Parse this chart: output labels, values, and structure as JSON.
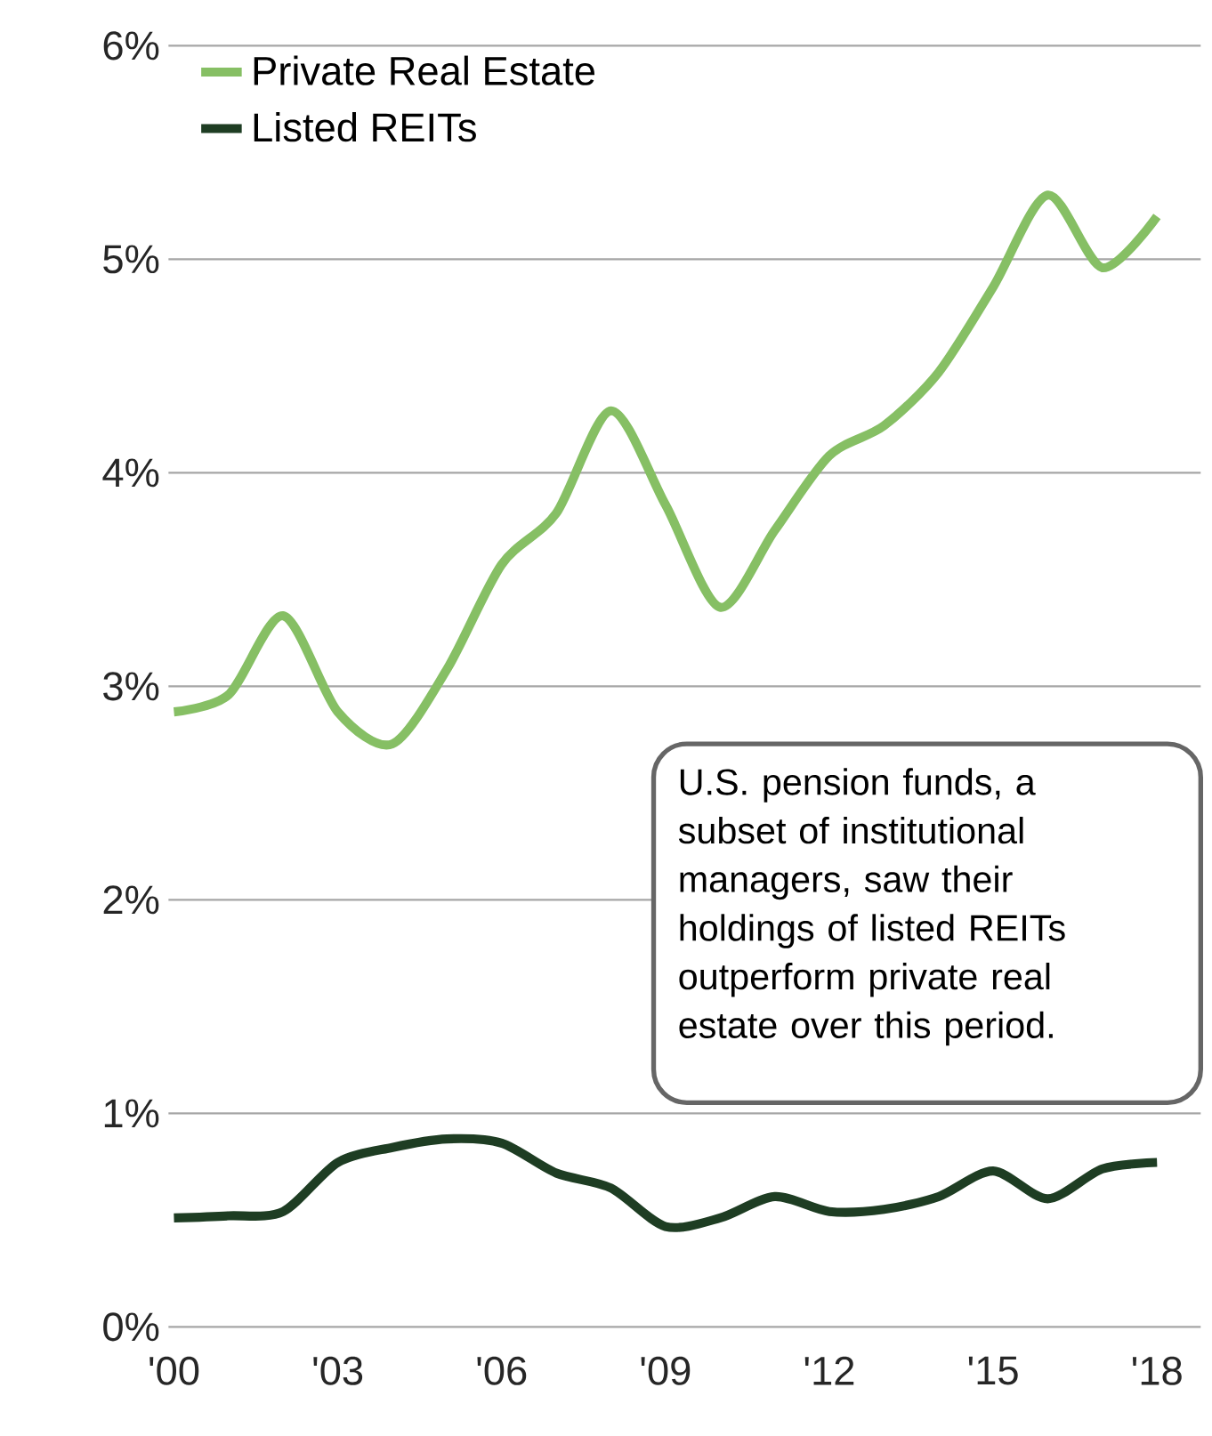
{
  "chart_data": {
    "type": "line",
    "x": [
      2000,
      2001,
      2002,
      2003,
      2004,
      2005,
      2006,
      2007,
      2008,
      2009,
      2010,
      2011,
      2012,
      2013,
      2014,
      2015,
      2016,
      2017,
      2018
    ],
    "series": [
      {
        "name": "Private Real Estate",
        "color": "#86bf64",
        "values": [
          2.88,
          2.96,
          3.33,
          2.88,
          2.73,
          3.08,
          3.57,
          3.81,
          4.29,
          3.85,
          3.37,
          3.73,
          4.08,
          4.22,
          4.47,
          4.87,
          5.3,
          4.96,
          5.2
        ]
      },
      {
        "name": "Listed REITs",
        "color": "#1e3d23",
        "values": [
          0.51,
          0.52,
          0.54,
          0.77,
          0.84,
          0.88,
          0.86,
          0.72,
          0.65,
          0.47,
          0.51,
          0.61,
          0.54,
          0.55,
          0.61,
          0.73,
          0.6,
          0.74,
          0.77
        ]
      }
    ],
    "xlim": [
      1999.9,
      2018.8
    ],
    "ylim": [
      0,
      6
    ],
    "xticks": [
      {
        "value": 2000,
        "label": "'00"
      },
      {
        "value": 2003,
        "label": "'03"
      },
      {
        "value": 2006,
        "label": "'06"
      },
      {
        "value": 2009,
        "label": "'09"
      },
      {
        "value": 2012,
        "label": "'12"
      },
      {
        "value": 2015,
        "label": "'15"
      },
      {
        "value": 2018,
        "label": "'18"
      }
    ],
    "yticks": [
      {
        "value": 0,
        "label": "0%"
      },
      {
        "value": 1,
        "label": "1%"
      },
      {
        "value": 2,
        "label": "2%"
      },
      {
        "value": 3,
        "label": "3%"
      },
      {
        "value": 4,
        "label": "4%"
      },
      {
        "value": 5,
        "label": "5%"
      },
      {
        "value": 6,
        "label": "6%"
      }
    ],
    "grid": "y",
    "legend": "top left",
    "marker": "none",
    "line_style": "solid",
    "annotations": [
      "U.S. pension funds, a subset of institutional managers, saw their holdings of listed REITs outperform private real estate over this period."
    ]
  }
}
